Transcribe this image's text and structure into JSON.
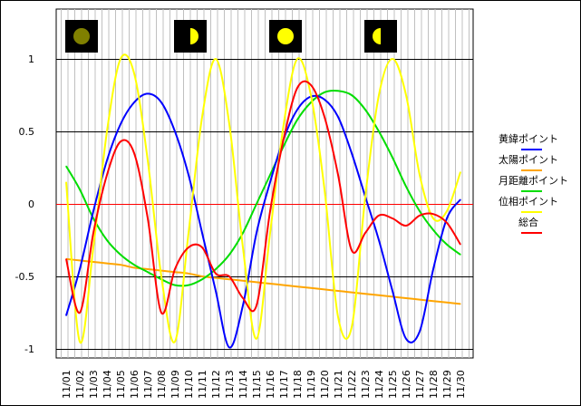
{
  "chart_data": {
    "type": "line",
    "title": "",
    "xlabel": "",
    "ylabel": "",
    "ylim": [
      -1,
      1
    ],
    "y_ticks": [
      1,
      0.5,
      0,
      -0.5,
      -1
    ],
    "y_tick_labels": [
      "1",
      "0.5",
      "0",
      "-0.5",
      "-1"
    ],
    "zero_line_color": "#ff0000",
    "grid": "vertical day lines; horizontal lines at y ticks",
    "legend_placement": "right",
    "categories": [
      "11/01",
      "11/02",
      "11/03",
      "11/04",
      "11/05",
      "11/06",
      "11/07",
      "11/08",
      "11/09",
      "11/10",
      "11/11",
      "11/12",
      "11/13",
      "11/14",
      "11/15",
      "11/16",
      "11/17",
      "11/18",
      "11/19",
      "11/20",
      "11/21",
      "11/22",
      "11/23",
      "11/24",
      "11/25",
      "11/26",
      "11/27",
      "11/28",
      "11/29",
      "11/30"
    ],
    "moon_phases": [
      {
        "day": "11/01",
        "phase": "new-moon"
      },
      {
        "day": "11/09",
        "phase": "first-quarter"
      },
      {
        "day": "11/16",
        "phase": "full-moon"
      },
      {
        "day": "11/23",
        "phase": "last-quarter"
      }
    ],
    "series": [
      {
        "name": "黄緯ポイント",
        "color": "#0000ff",
        "values": [
          -0.77,
          -0.45,
          -0.05,
          0.3,
          0.55,
          0.7,
          0.76,
          0.7,
          0.5,
          0.2,
          -0.2,
          -0.6,
          -0.99,
          -0.7,
          -0.2,
          0.15,
          0.45,
          0.65,
          0.74,
          0.72,
          0.6,
          0.35,
          0.05,
          -0.25,
          -0.6,
          -0.93,
          -0.88,
          -0.45,
          -0.1,
          0.03
        ]
      },
      {
        "name": "太陽ポイント",
        "color": "#ffa500",
        "values": [
          -0.38,
          -0.39,
          -0.4,
          -0.41,
          -0.42,
          -0.44,
          -0.45,
          -0.46,
          -0.47,
          -0.48,
          -0.5,
          -0.51,
          -0.52,
          -0.53,
          -0.54,
          -0.55,
          -0.56,
          -0.57,
          -0.58,
          -0.59,
          -0.6,
          -0.61,
          -0.62,
          -0.63,
          -0.64,
          -0.65,
          -0.66,
          -0.67,
          -0.68,
          -0.69
        ]
      },
      {
        "name": "月距離ポイント",
        "color": "#00dd00",
        "values": [
          0.26,
          0.1,
          -0.1,
          -0.25,
          -0.35,
          -0.42,
          -0.47,
          -0.52,
          -0.56,
          -0.56,
          -0.52,
          -0.45,
          -0.35,
          -0.2,
          0.0,
          0.2,
          0.4,
          0.58,
          0.7,
          0.77,
          0.78,
          0.75,
          0.65,
          0.5,
          0.32,
          0.12,
          -0.05,
          -0.18,
          -0.28,
          -0.35
        ]
      },
      {
        "name": "位相ポイント",
        "color": "#ffff00",
        "values": [
          0.15,
          -0.95,
          -0.3,
          0.5,
          1.0,
          0.9,
          0.3,
          -0.5,
          -0.95,
          -0.2,
          0.6,
          1.0,
          0.55,
          -0.3,
          -0.93,
          -0.2,
          0.55,
          1.0,
          0.75,
          0.1,
          -0.78,
          -0.85,
          0.05,
          0.75,
          1.0,
          0.75,
          0.2,
          -0.1,
          -0.05,
          0.22
        ]
      },
      {
        "name": "総合",
        "color": "#ff0000",
        "values": [
          -0.38,
          -0.75,
          -0.2,
          0.2,
          0.43,
          0.35,
          -0.1,
          -0.75,
          -0.45,
          -0.3,
          -0.3,
          -0.48,
          -0.5,
          -0.65,
          -0.7,
          -0.05,
          0.45,
          0.8,
          0.82,
          0.6,
          0.2,
          -0.32,
          -0.2,
          -0.08,
          -0.1,
          -0.15,
          -0.08,
          -0.07,
          -0.13,
          -0.28
        ]
      }
    ]
  }
}
